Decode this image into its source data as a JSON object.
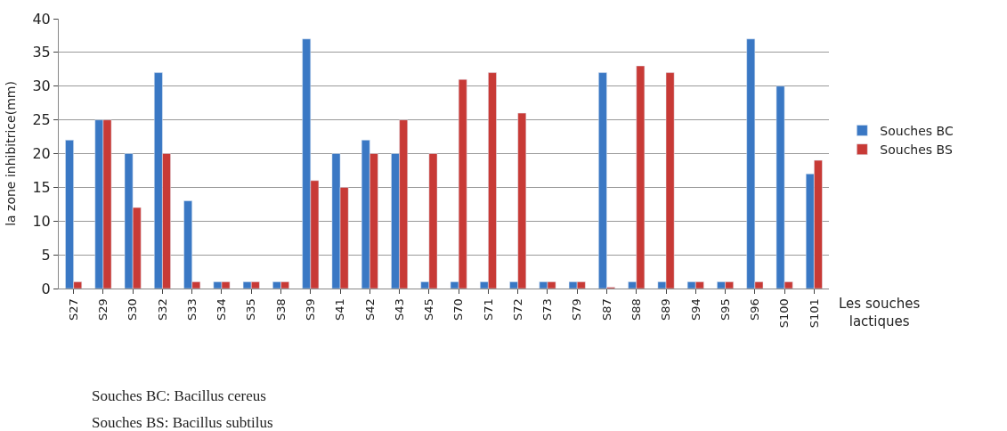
{
  "chart_data": {
    "type": "bar",
    "categories": [
      "S27",
      "S29",
      "S30",
      "S32",
      "S33",
      "S34",
      "S35",
      "S38",
      "S39",
      "S41",
      "S42",
      "S43",
      "S45",
      "S70",
      "S71",
      "S72",
      "S73",
      "S79",
      "S87",
      "S88",
      "S89",
      "S94",
      "S95",
      "S96",
      "S100",
      "S101"
    ],
    "series": [
      {
        "name": "Souches BC",
        "color": "#3a78c4",
        "values": [
          22,
          25,
          20,
          32,
          13,
          1,
          1,
          1,
          37,
          20,
          22,
          20,
          1,
          1,
          1,
          1,
          1,
          1,
          32,
          1,
          1,
          1,
          1,
          37,
          30,
          17
        ]
      },
      {
        "name": "Souches BS",
        "color": "#c83a36",
        "values": [
          1,
          25,
          12,
          20,
          1,
          1,
          1,
          1,
          16,
          15,
          20,
          25,
          20,
          31,
          32,
          26,
          1,
          1,
          0.2,
          33,
          32,
          1,
          1,
          1,
          1,
          19
        ]
      }
    ],
    "ylabel": "la zone inhibitrice(mm)",
    "xlabel": "Les souches lactiques",
    "ylim": [
      0,
      40
    ],
    "yticks": [
      0,
      5,
      10,
      15,
      20,
      25,
      30,
      35,
      40
    ],
    "grid": "y",
    "legend": "right",
    "annotations": [
      "Souches BC: Bacillus cereus",
      "Souches BS: Bacillus subtilus"
    ]
  }
}
